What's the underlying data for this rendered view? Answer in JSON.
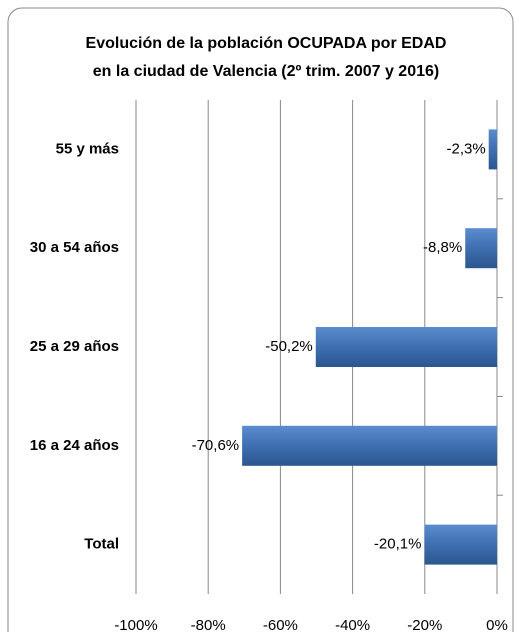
{
  "chart_data": {
    "type": "bar",
    "orientation": "horizontal",
    "title": [
      "Evolución de la población OCUPADA por EDAD",
      "en la ciudad de Valencia (2º trim. 2007 y 2016)"
    ],
    "categories": [
      "55 y más",
      "30 a 54 años",
      "25 a 29 años",
      "16 a 24 años",
      "Total"
    ],
    "values": [
      -2.3,
      -8.8,
      -50.2,
      -70.6,
      -20.1
    ],
    "value_labels": [
      "-2,3%",
      "-8,8%",
      "-50,2%",
      "-70,6%",
      "-20,1%"
    ],
    "color": "#3f6fb0",
    "xlim": [
      -100,
      0
    ],
    "xticks": [
      {
        "value": -100,
        "label": "-100%"
      },
      {
        "value": -80,
        "label": "-80%"
      },
      {
        "value": -60,
        "label": "-60%"
      },
      {
        "value": -40,
        "label": "-40%"
      },
      {
        "value": -20,
        "label": "-20%"
      },
      {
        "value": 0,
        "label": "0%"
      }
    ],
    "grid": true
  }
}
